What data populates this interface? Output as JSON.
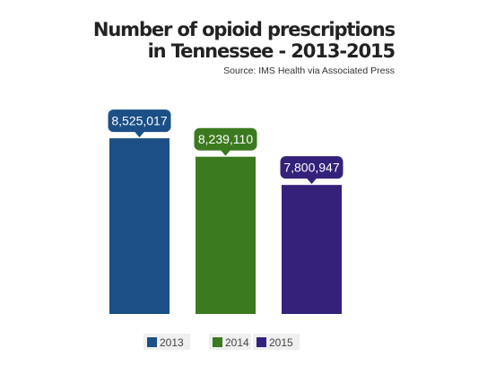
{
  "chart_data": {
    "type": "bar",
    "title": "Number of opioid prescriptions in Tennessee - 2013-2015",
    "title_lines": [
      "Number of opioid prescriptions",
      "in Tennessee - 2013-2015"
    ],
    "subtitle": "Source: IMS Health via Associated Press",
    "categories": [
      "2013",
      "2014",
      "2015"
    ],
    "series": [
      {
        "name": "2013",
        "values": [
          8525017,
          null,
          null
        ],
        "color": "#1b4f86"
      },
      {
        "name": "2014",
        "values": [
          null,
          8239110,
          null
        ],
        "color": "#3b7a1f"
      },
      {
        "name": "2015",
        "values": [
          null,
          null,
          7800947
        ],
        "color": "#34217a"
      }
    ],
    "data_labels": [
      "8,525,017",
      "8,239,110",
      "7,800,947"
    ],
    "xlabel": "",
    "ylabel": "",
    "ylim": [
      5800000,
      9000000
    ],
    "grid": false,
    "legend": "bottom",
    "axis_visible": false
  }
}
